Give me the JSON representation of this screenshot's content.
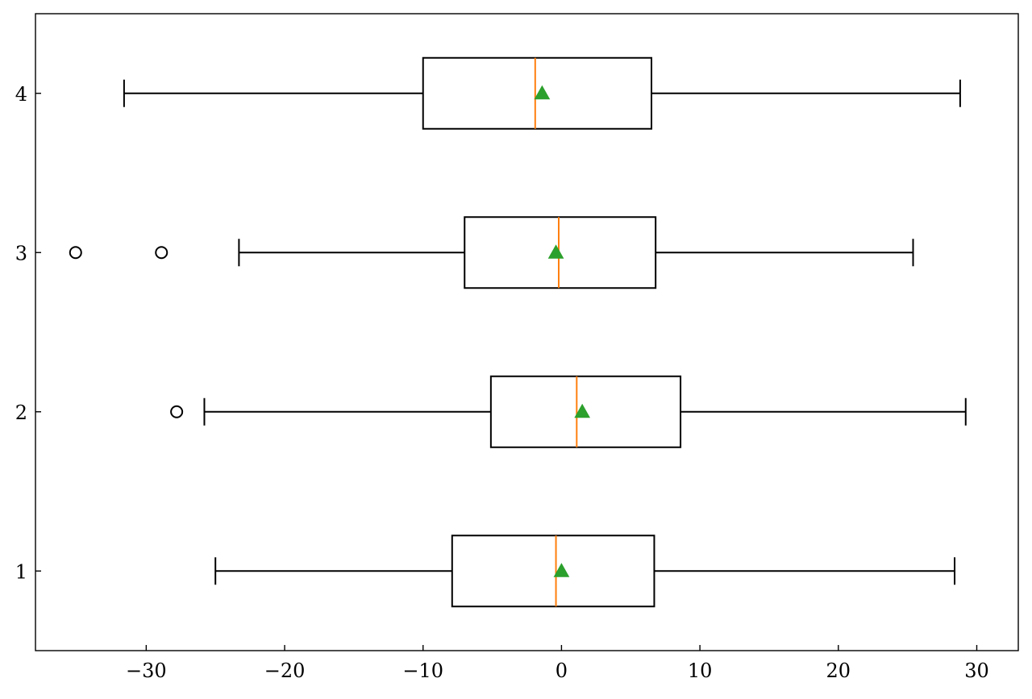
{
  "chart_data": {
    "type": "boxplot",
    "orientation": "horizontal",
    "title": "",
    "xlabel": "",
    "ylabel": "",
    "xlim": [
      -38,
      33
    ],
    "ylim": [
      0.5,
      4.5
    ],
    "xticks": [
      -30,
      -20,
      -10,
      0,
      10,
      20,
      30
    ],
    "xtick_labels": [
      "−30",
      "−20",
      "−10",
      "0",
      "10",
      "20",
      "30"
    ],
    "yticks": [
      1,
      2,
      3,
      4
    ],
    "ytick_labels": [
      "1",
      "2",
      "3",
      "4"
    ],
    "grid": false,
    "colors": {
      "box": "#000000",
      "median": "#ff7f0e",
      "mean": "#2ca02c",
      "flier": "#000000"
    },
    "series": [
      {
        "position": 1,
        "whisker_low": -25.0,
        "q1": -7.9,
        "median": -0.4,
        "q3": 6.7,
        "whisker_high": 28.4,
        "mean": 0.0,
        "outliers": []
      },
      {
        "position": 2,
        "whisker_low": -25.8,
        "q1": -5.1,
        "median": 1.1,
        "q3": 8.6,
        "whisker_high": 29.2,
        "mean": 1.5,
        "outliers": [
          -27.8
        ]
      },
      {
        "position": 3,
        "whisker_low": -23.3,
        "q1": -7.0,
        "median": -0.2,
        "q3": 6.8,
        "whisker_high": 25.4,
        "mean": -0.4,
        "outliers": [
          -35.1,
          -28.9
        ]
      },
      {
        "position": 4,
        "whisker_low": -31.6,
        "q1": -10.0,
        "median": -1.9,
        "q3": 6.5,
        "whisker_high": 28.8,
        "mean": -1.4,
        "outliers": []
      }
    ]
  }
}
